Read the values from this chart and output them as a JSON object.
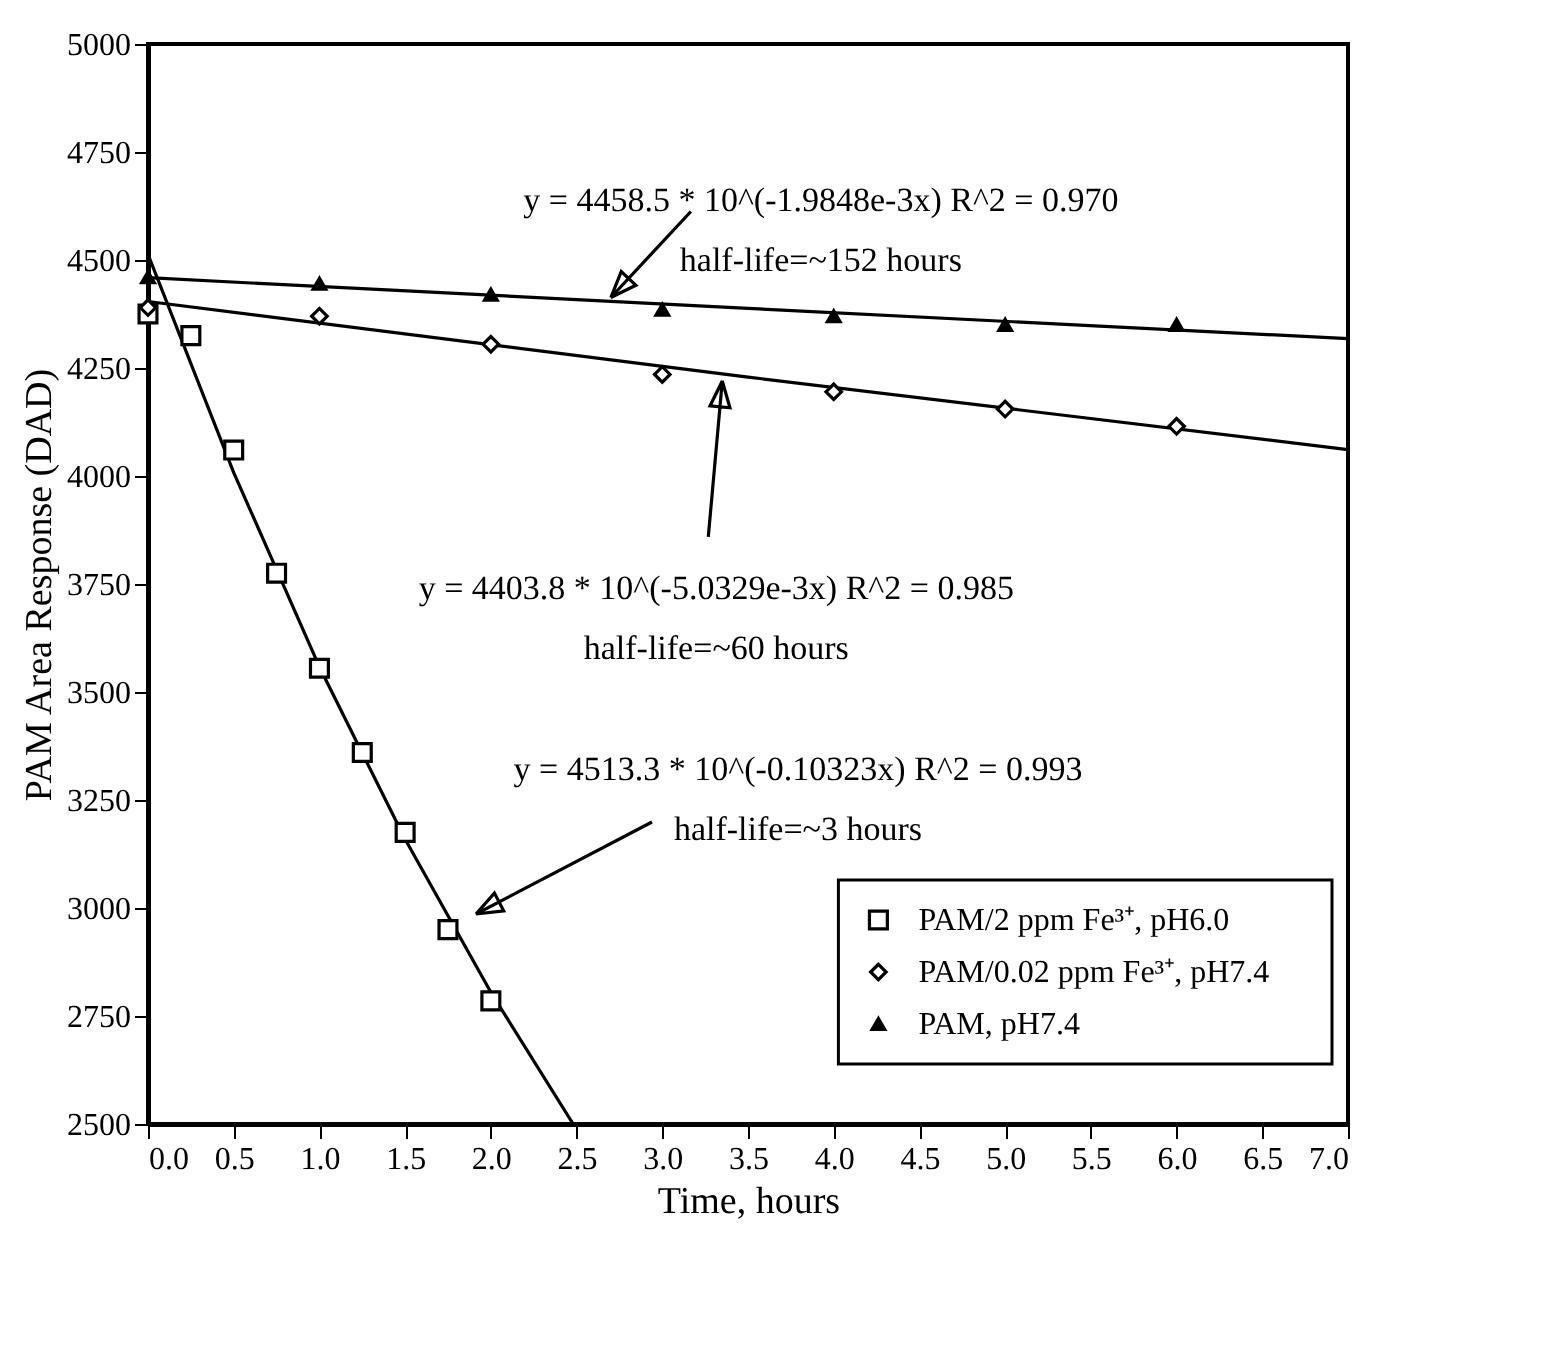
{
  "chart_data": {
    "type": "scatter",
    "xlabel": "Time, hours",
    "ylabel": "PAM Area Response (DAD)",
    "xlim": [
      0,
      7
    ],
    "xticks": [
      {
        "value": 0,
        "label": "0.0"
      },
      {
        "value": 0.5,
        "label": "0.5"
      },
      {
        "value": 1,
        "label": "1.0"
      },
      {
        "value": 1.5,
        "label": "1.5"
      },
      {
        "value": 2,
        "label": "2.0"
      },
      {
        "value": 2.5,
        "label": "2.5"
      },
      {
        "value": 3,
        "label": "3.0"
      },
      {
        "value": 3.5,
        "label": "3.5"
      },
      {
        "value": 4,
        "label": "4.0"
      },
      {
        "value": 4.5,
        "label": "4.5"
      },
      {
        "value": 5,
        "label": "5.0"
      },
      {
        "value": 5.5,
        "label": "5.5"
      },
      {
        "value": 6,
        "label": "6.0"
      },
      {
        "value": 6.5,
        "label": "6.5"
      },
      {
        "value": 7,
        "label": "7.0"
      }
    ],
    "ylim": [
      2500,
      5000
    ],
    "yticks": [
      2500,
      2750,
      3000,
      3250,
      3500,
      3750,
      4000,
      4250,
      4500,
      4750,
      5000
    ],
    "grid": false,
    "legend": "bottom right",
    "series": [
      {
        "name": "PAM/2 ppm Fe³⁺, pH6.0",
        "type": "scatter",
        "marker": "square",
        "color": "#000000",
        "x": [
          0,
          0.25,
          0.5,
          0.75,
          1,
          1.25,
          1.5,
          1.75,
          2
        ],
        "values": [
          4375,
          4325,
          4060,
          3775,
          3555,
          3360,
          3175,
          2950,
          2785
        ]
      },
      {
        "name": "PAM/0.02 ppm Fe³⁺, pH7.4",
        "type": "scatter",
        "marker": "diamond",
        "color": "#000000",
        "x": [
          0,
          1,
          2,
          3,
          4,
          5,
          6
        ],
        "values": [
          4390,
          4370,
          4305,
          4235,
          4195,
          4155,
          4115
        ]
      },
      {
        "name": "PAM, pH7.4",
        "type": "scatter",
        "marker": "triangle",
        "color": "#000000",
        "x": [
          0,
          1,
          2,
          3,
          4,
          5,
          6
        ],
        "values": [
          4460,
          4445,
          4420,
          4385,
          4370,
          4350,
          4350
        ]
      },
      {
        "type": "line",
        "color": "#000000",
        "x": [
          0,
          0.5,
          1,
          1.5,
          2,
          2.48
        ],
        "values": [
          4513,
          4008,
          3558,
          3159,
          2805,
          2500
        ]
      },
      {
        "type": "line",
        "color": "#000000",
        "x": [
          0,
          3.5,
          7
        ],
        "values": [
          4404,
          4229,
          4061
        ]
      },
      {
        "type": "line",
        "color": "#000000",
        "x": [
          0,
          3.5,
          7
        ],
        "values": [
          4459,
          4388,
          4318
        ]
      }
    ],
    "annotations": [
      {
        "text": "y = 4458.5 * 10^(-1.9848e-3x)   R^2 = 0.970\nhalf-life=~152 hours",
        "x": 2.7,
        "y": 4404
      },
      {
        "text": "y = 4403.8 * 10^(-5.0329e-3x)   R^2 = 0.985\nhalf-life=~60 hours",
        "x": 3.35,
        "y": 4220
      },
      "y = 4513.3 * 10^(-0.10323x)   R^2 = 0.993\nhalf-life=~3 hours"
    ]
  }
}
